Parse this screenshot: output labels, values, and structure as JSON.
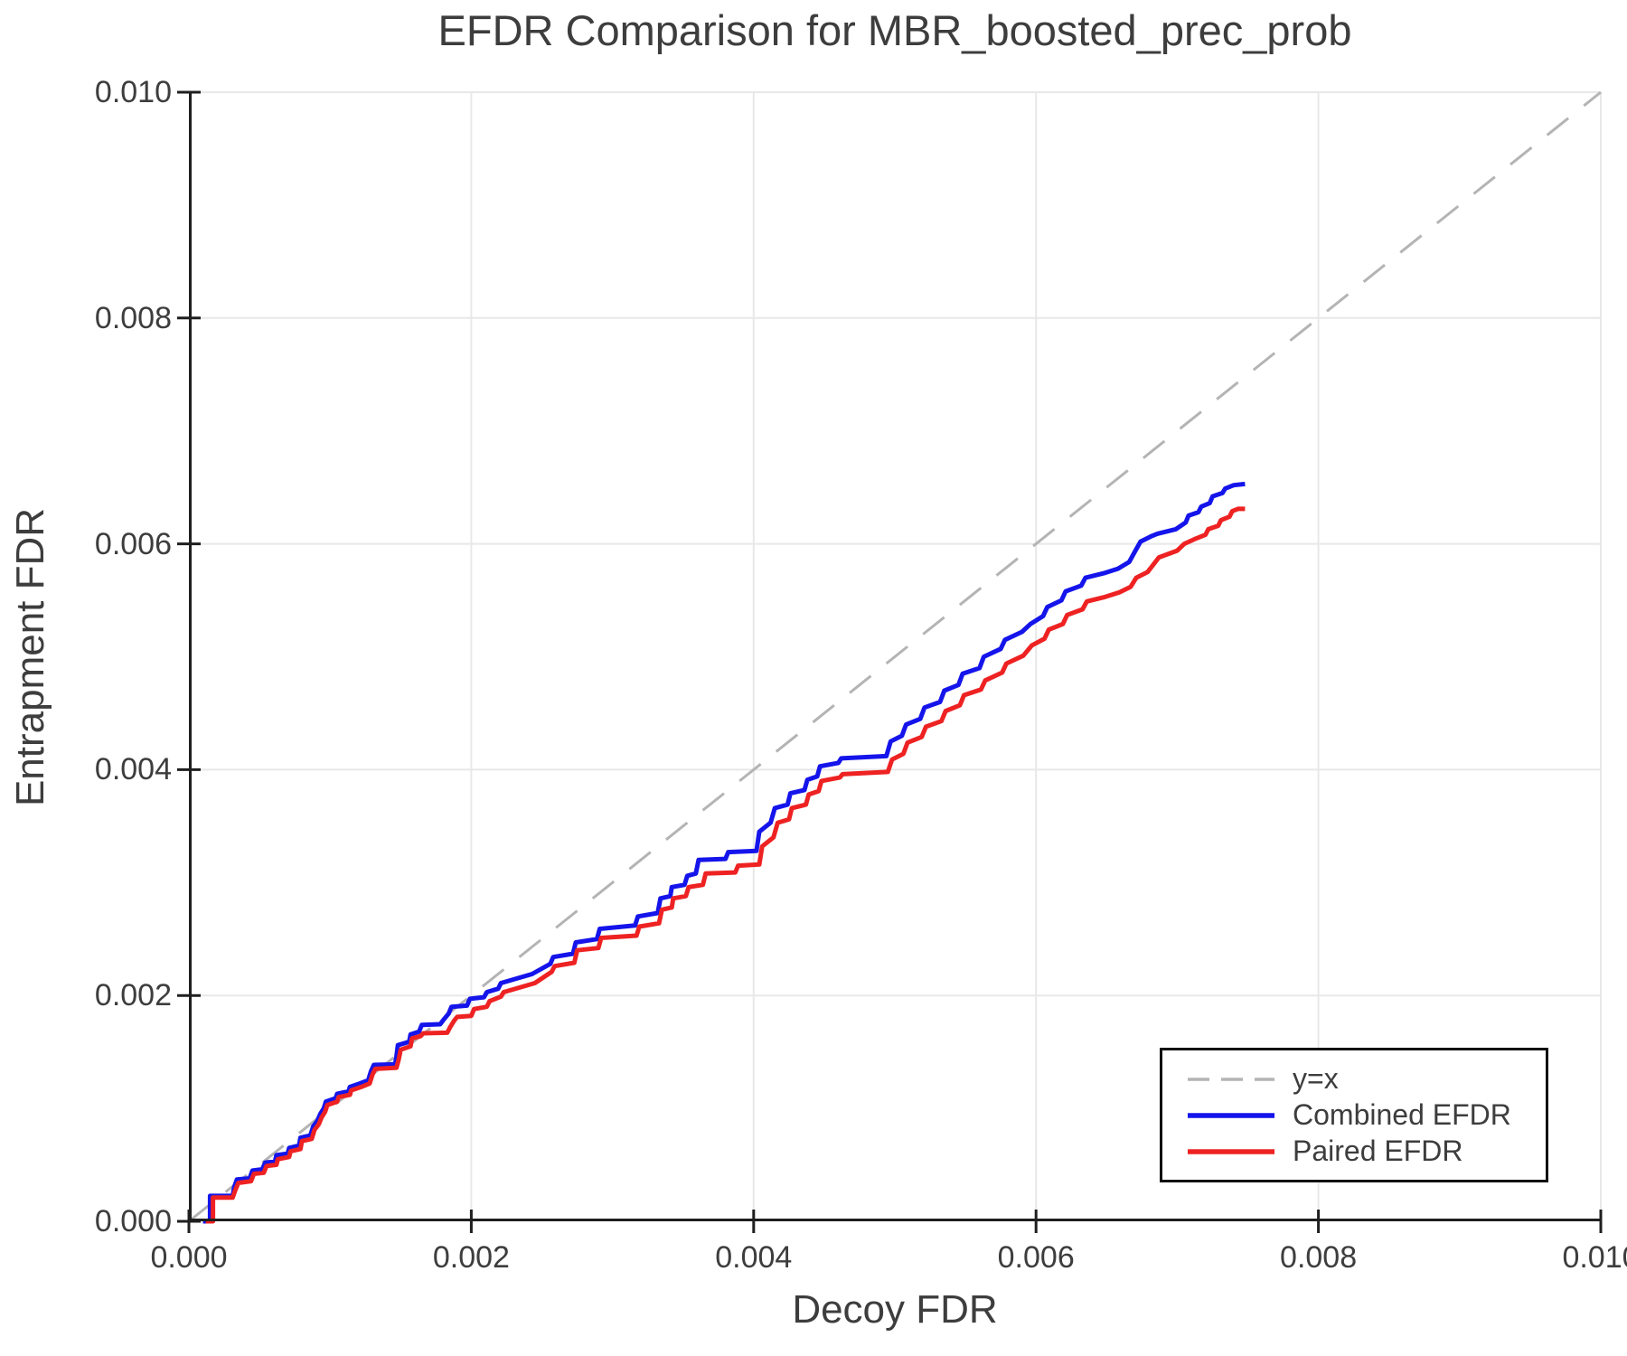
{
  "chart_data": {
    "type": "line",
    "title": "EFDR Comparison for MBR_boosted_prec_prob",
    "xlabel": "Decoy FDR",
    "ylabel": "Entrapment FDR",
    "xlim": [
      0.0,
      0.01
    ],
    "ylim": [
      0.0,
      0.01
    ],
    "grid": true,
    "legend_position": "lower-right",
    "colors": {
      "axis": "#1f1f1f",
      "grid": "#e8e8e8",
      "text": "#3d3d3d",
      "legend_border": "#111111",
      "diagonal": "#b4b4b4",
      "combined": "#1414eb",
      "paired": "#ee2222"
    },
    "x_ticks": [
      {
        "v": 0.0,
        "label": "0.000"
      },
      {
        "v": 0.002,
        "label": "0.002"
      },
      {
        "v": 0.004,
        "label": "0.004"
      },
      {
        "v": 0.006,
        "label": "0.006"
      },
      {
        "v": 0.008,
        "label": "0.008"
      },
      {
        "v": 0.01,
        "label": "0.010"
      }
    ],
    "y_ticks": [
      {
        "v": 0.0,
        "label": "0.000"
      },
      {
        "v": 0.002,
        "label": "0.002"
      },
      {
        "v": 0.004,
        "label": "0.004"
      },
      {
        "v": 0.006,
        "label": "0.006"
      },
      {
        "v": 0.008,
        "label": "0.008"
      },
      {
        "v": 0.01,
        "label": "0.010"
      }
    ],
    "series": [
      {
        "name": "y=x",
        "style": "dashed",
        "color": "#b4b4b4",
        "points": [
          [
            0.0,
            0.0
          ],
          [
            0.01,
            0.01
          ]
        ]
      },
      {
        "name": "Combined EFDR",
        "style": "solid",
        "color": "#1414eb",
        "points": [
          [
            0.0001,
            0
          ],
          [
            0.00015,
            0
          ],
          [
            0.00015,
            0.000225
          ],
          [
            0.00031,
            0.000225
          ],
          [
            0.00032,
            0.0003
          ],
          [
            0.00034,
            0.00037
          ],
          [
            0.00043,
            0.00038
          ],
          [
            0.00045,
            0.00045
          ],
          [
            0.00052,
            0.00046
          ],
          [
            0.00054,
            0.00052
          ],
          [
            0.00061,
            0.00053
          ],
          [
            0.00062,
            0.000585
          ],
          [
            0.0007,
            0.0006
          ],
          [
            0.00071,
            0.00065
          ],
          [
            0.00078,
            0.00067
          ],
          [
            0.00079,
            0.00074
          ],
          [
            0.00086,
            0.00076
          ],
          [
            0.00088,
            0.00084
          ],
          [
            0.00091,
            0.00089
          ],
          [
            0.00093,
            0.00095
          ],
          [
            0.000955,
            0.001
          ],
          [
            0.00097,
            0.00106
          ],
          [
            0.00104,
            0.00109
          ],
          [
            0.00105,
            0.00113
          ],
          [
            0.00113,
            0.00115
          ],
          [
            0.00114,
            0.00119
          ],
          [
            0.00121,
            0.00122
          ],
          [
            0.00127,
            0.00125
          ],
          [
            0.00129,
            0.00133
          ],
          [
            0.00131,
            0.001385
          ],
          [
            0.00146,
            0.00139
          ],
          [
            0.00147,
            0.00146
          ],
          [
            0.00148,
            0.00156
          ],
          [
            0.00156,
            0.00159
          ],
          [
            0.00157,
            0.001655
          ],
          [
            0.00163,
            0.00168
          ],
          [
            0.00165,
            0.00174
          ],
          [
            0.00178,
            0.001745
          ],
          [
            0.0018,
            0.00178
          ],
          [
            0.00184,
            0.00184
          ],
          [
            0.00186,
            0.0019
          ],
          [
            0.00197,
            0.00191
          ],
          [
            0.00199,
            0.00197
          ],
          [
            0.00209,
            0.001985
          ],
          [
            0.00211,
            0.00203
          ],
          [
            0.00219,
            0.00206
          ],
          [
            0.00221,
            0.00211
          ],
          [
            0.00232,
            0.00215
          ],
          [
            0.00243,
            0.00219
          ],
          [
            0.00256,
            0.00228
          ],
          [
            0.00258,
            0.00234
          ],
          [
            0.00272,
            0.00237
          ],
          [
            0.00274,
            0.00247
          ],
          [
            0.00289,
            0.0025
          ],
          [
            0.00291,
            0.00259
          ],
          [
            0.00316,
            0.00262
          ],
          [
            0.00318,
            0.0027
          ],
          [
            0.00332,
            0.00273
          ],
          [
            0.00334,
            0.00286
          ],
          [
            0.00341,
            0.00288
          ],
          [
            0.00342,
            0.00296
          ],
          [
            0.00351,
            0.00298
          ],
          [
            0.00353,
            0.00306
          ],
          [
            0.00359,
            0.00308
          ],
          [
            0.00361,
            0.0032
          ],
          [
            0.0038,
            0.00321
          ],
          [
            0.00382,
            0.00327
          ],
          [
            0.00402,
            0.00328
          ],
          [
            0.00404,
            0.00345
          ],
          [
            0.00412,
            0.00353
          ],
          [
            0.00415,
            0.00366
          ],
          [
            0.00424,
            0.00369
          ],
          [
            0.00426,
            0.00379
          ],
          [
            0.00436,
            0.00382
          ],
          [
            0.00438,
            0.00391
          ],
          [
            0.00445,
            0.00394
          ],
          [
            0.00447,
            0.00403
          ],
          [
            0.0046,
            0.00406
          ],
          [
            0.00462,
            0.0041
          ],
          [
            0.00494,
            0.00412
          ],
          [
            0.00497,
            0.00425
          ],
          [
            0.00505,
            0.0043
          ],
          [
            0.00508,
            0.0044
          ],
          [
            0.00518,
            0.00445
          ],
          [
            0.00521,
            0.00455
          ],
          [
            0.00532,
            0.0046
          ],
          [
            0.00535,
            0.0047
          ],
          [
            0.00545,
            0.00475
          ],
          [
            0.00548,
            0.00485
          ],
          [
            0.0056,
            0.0049
          ],
          [
            0.00563,
            0.005
          ],
          [
            0.00575,
            0.00507
          ],
          [
            0.00578,
            0.00515
          ],
          [
            0.0059,
            0.00522
          ],
          [
            0.00596,
            0.00529
          ],
          [
            0.00605,
            0.00536
          ],
          [
            0.00608,
            0.00544
          ],
          [
            0.00618,
            0.0055
          ],
          [
            0.00621,
            0.00558
          ],
          [
            0.00632,
            0.00563
          ],
          [
            0.00635,
            0.0057
          ],
          [
            0.00648,
            0.00574
          ],
          [
            0.00658,
            0.00578
          ],
          [
            0.00666,
            0.00584
          ],
          [
            0.0067,
            0.00593
          ],
          [
            0.00674,
            0.00602
          ],
          [
            0.00682,
            0.00607
          ],
          [
            0.00686,
            0.00609
          ],
          [
            0.00699,
            0.00613
          ],
          [
            0.00706,
            0.00619
          ],
          [
            0.00708,
            0.00625
          ],
          [
            0.00715,
            0.00628
          ],
          [
            0.00717,
            0.00633
          ],
          [
            0.00723,
            0.00636
          ],
          [
            0.00725,
            0.00642
          ],
          [
            0.00732,
            0.00645
          ],
          [
            0.00734,
            0.00649
          ],
          [
            0.0074,
            0.00652
          ],
          [
            0.00748,
            0.00653
          ]
        ]
      },
      {
        "name": "Paired EFDR",
        "style": "solid",
        "color": "#ee2222",
        "points": [
          [
            0.00012,
            0
          ],
          [
            0.00017,
            0
          ],
          [
            0.00017,
            0.00021
          ],
          [
            0.00031,
            0.00021
          ],
          [
            0.00033,
            0.00028
          ],
          [
            0.00035,
            0.00034
          ],
          [
            0.00044,
            0.000355
          ],
          [
            0.00046,
            0.00042
          ],
          [
            0.00053,
            0.00043
          ],
          [
            0.00055,
            0.00049
          ],
          [
            0.00062,
            0.0005
          ],
          [
            0.00063,
            0.00055
          ],
          [
            0.00071,
            0.00057
          ],
          [
            0.00072,
            0.00062
          ],
          [
            0.00079,
            0.00064
          ],
          [
            0.0008,
            0.00071
          ],
          [
            0.00087,
            0.00073
          ],
          [
            0.00089,
            0.00081
          ],
          [
            0.00092,
            0.00086
          ],
          [
            0.00094,
            0.00092
          ],
          [
            0.000965,
            0.00097
          ],
          [
            0.00098,
            0.00103
          ],
          [
            0.00105,
            0.00106
          ],
          [
            0.00106,
            0.0011
          ],
          [
            0.00114,
            0.00112
          ],
          [
            0.00115,
            0.00116
          ],
          [
            0.00122,
            0.00119
          ],
          [
            0.00128,
            0.00122
          ],
          [
            0.0013,
            0.0013
          ],
          [
            0.00132,
            0.00135
          ],
          [
            0.00147,
            0.00136
          ],
          [
            0.001485,
            0.00143
          ],
          [
            0.0015,
            0.00152
          ],
          [
            0.00157,
            0.00155
          ],
          [
            0.00158,
            0.00162
          ],
          [
            0.00164,
            0.00164
          ],
          [
            0.00166,
            0.001665
          ],
          [
            0.00183,
            0.00167
          ],
          [
            0.00185,
            0.00172
          ],
          [
            0.00188,
            0.00178
          ],
          [
            0.0019,
            0.00181
          ],
          [
            0.002,
            0.00182
          ],
          [
            0.00202,
            0.00188
          ],
          [
            0.00211,
            0.0019
          ],
          [
            0.00213,
            0.00195
          ],
          [
            0.00221,
            0.00199
          ],
          [
            0.00223,
            0.00203
          ],
          [
            0.00234,
            0.00207
          ],
          [
            0.00245,
            0.00211
          ],
          [
            0.00257,
            0.00221
          ],
          [
            0.00259,
            0.00226
          ],
          [
            0.00273,
            0.00229
          ],
          [
            0.00275,
            0.0024
          ],
          [
            0.0029,
            0.00242
          ],
          [
            0.00292,
            0.00251
          ],
          [
            0.00317,
            0.00253
          ],
          [
            0.00319,
            0.00261
          ],
          [
            0.00333,
            0.00264
          ],
          [
            0.00335,
            0.00276
          ],
          [
            0.00342,
            0.00278
          ],
          [
            0.00343,
            0.00286
          ],
          [
            0.00352,
            0.00288
          ],
          [
            0.00354,
            0.00296
          ],
          [
            0.00364,
            0.00298
          ],
          [
            0.00366,
            0.00308
          ],
          [
            0.00387,
            0.00309
          ],
          [
            0.00389,
            0.00315
          ],
          [
            0.00404,
            0.00316
          ],
          [
            0.00406,
            0.00332
          ],
          [
            0.00414,
            0.0034
          ],
          [
            0.00417,
            0.00353
          ],
          [
            0.00425,
            0.00356
          ],
          [
            0.00427,
            0.00366
          ],
          [
            0.00437,
            0.00369
          ],
          [
            0.00439,
            0.00378
          ],
          [
            0.00446,
            0.00381
          ],
          [
            0.00448,
            0.0039
          ],
          [
            0.00461,
            0.00393
          ],
          [
            0.00463,
            0.00396
          ],
          [
            0.00495,
            0.00398
          ],
          [
            0.00498,
            0.00409
          ],
          [
            0.00506,
            0.00414
          ],
          [
            0.00509,
            0.00424
          ],
          [
            0.00519,
            0.00429
          ],
          [
            0.00522,
            0.00438
          ],
          [
            0.00533,
            0.00443
          ],
          [
            0.00536,
            0.00452
          ],
          [
            0.00546,
            0.00457
          ],
          [
            0.00549,
            0.00466
          ],
          [
            0.00561,
            0.00471
          ],
          [
            0.00564,
            0.00479
          ],
          [
            0.00576,
            0.00486
          ],
          [
            0.00579,
            0.00494
          ],
          [
            0.00591,
            0.00501
          ],
          [
            0.00597,
            0.0051
          ],
          [
            0.00606,
            0.00516
          ],
          [
            0.00609,
            0.00524
          ],
          [
            0.00619,
            0.00529
          ],
          [
            0.00622,
            0.00537
          ],
          [
            0.00633,
            0.00542
          ],
          [
            0.00636,
            0.00549
          ],
          [
            0.00649,
            0.00553
          ],
          [
            0.00659,
            0.00557
          ],
          [
            0.00667,
            0.00562
          ],
          [
            0.00671,
            0.0057
          ],
          [
            0.00679,
            0.00575
          ],
          [
            0.00687,
            0.00588
          ],
          [
            0.007,
            0.00594
          ],
          [
            0.00705,
            0.006
          ],
          [
            0.00712,
            0.00604
          ],
          [
            0.0072,
            0.00608
          ],
          [
            0.00722,
            0.00613
          ],
          [
            0.00729,
            0.00616
          ],
          [
            0.00731,
            0.00621
          ],
          [
            0.00737,
            0.00624
          ],
          [
            0.00739,
            0.00629
          ],
          [
            0.00743,
            0.00631
          ],
          [
            0.00748,
            0.00631
          ]
        ]
      }
    ]
  }
}
